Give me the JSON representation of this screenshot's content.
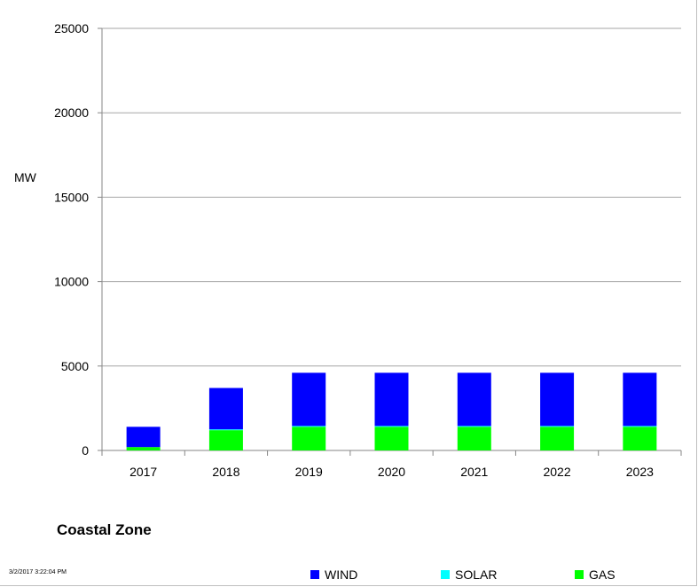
{
  "chart_data": {
    "type": "bar",
    "stacked": true,
    "title": "Coastal Zone",
    "ylabel": "MW",
    "xlabel": "",
    "ylim": [
      0,
      25000
    ],
    "yticks": [
      "0",
      "5000",
      "10000",
      "15000",
      "20000",
      "25000"
    ],
    "categories": [
      "2017",
      "2018",
      "2019",
      "2020",
      "2021",
      "2022",
      "2023"
    ],
    "series": [
      {
        "name": "GAS",
        "color": "#00ff00",
        "values": [
          200,
          1200,
          1400,
          1400,
          1400,
          1400,
          1400
        ]
      },
      {
        "name": "SOLAR",
        "color": "#00ffff",
        "values": [
          0,
          50,
          50,
          50,
          50,
          50,
          50
        ]
      },
      {
        "name": "WIND",
        "color": "#0000ff",
        "values": [
          1200,
          2450,
          3150,
          3150,
          3150,
          3150,
          3150
        ]
      }
    ],
    "grid": true,
    "legend": "bottom",
    "legend_order": [
      "WIND",
      "SOLAR",
      "GAS"
    ]
  },
  "footer": {
    "timestamp": "3/2/2017 3:22:04 PM"
  }
}
